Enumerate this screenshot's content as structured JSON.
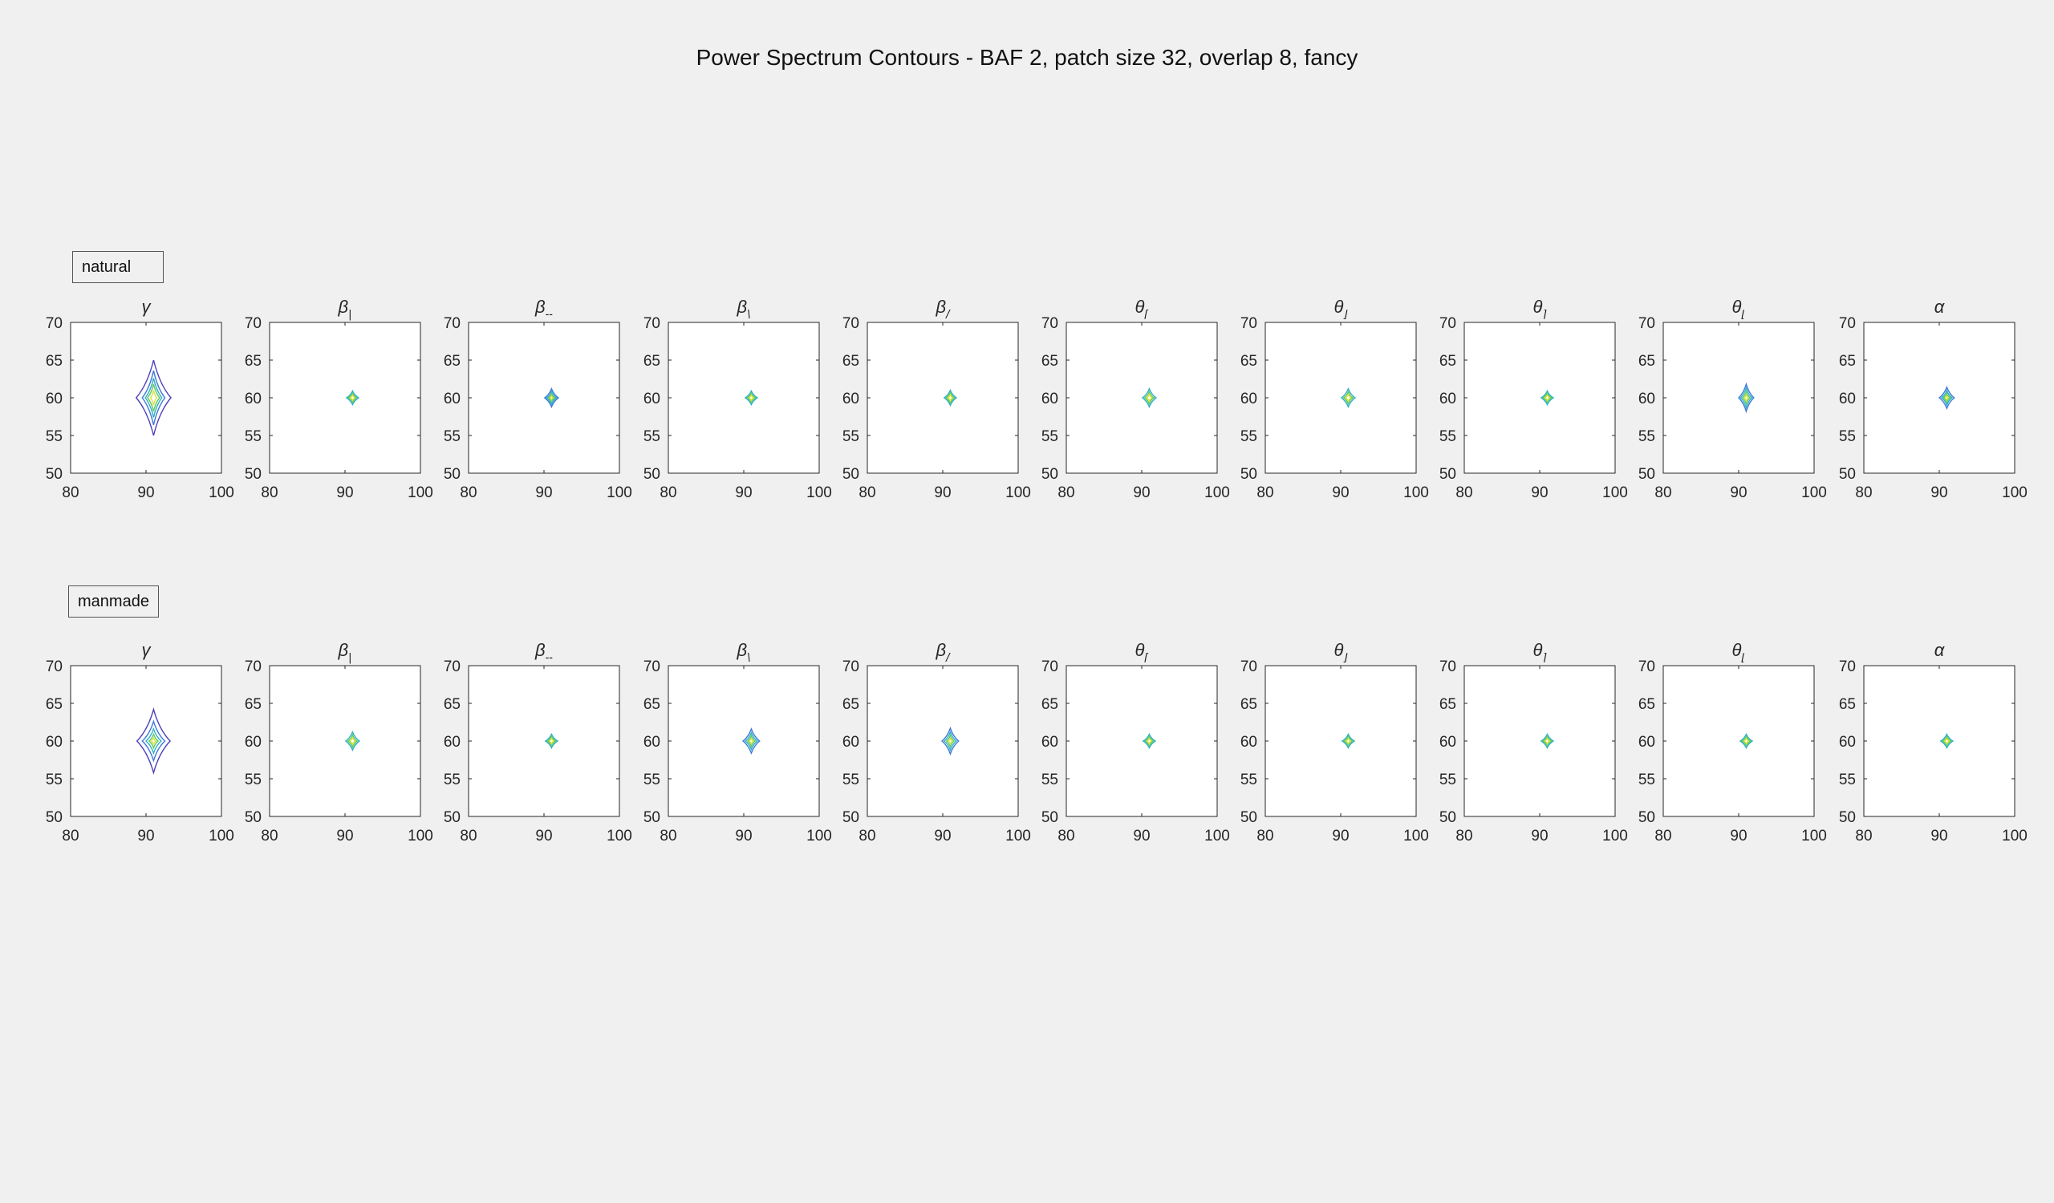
{
  "figure": {
    "title": "Power Spectrum Contours - BAF 2, patch size 32, overlap 8, fancy"
  },
  "colors": {
    "background": "#f0f0f0",
    "axes_face": "#ffffff",
    "axes_edge": "#262626",
    "contour_levels": [
      "#4a3fb8",
      "#3c78d8",
      "#2fb0c6",
      "#5ec962",
      "#d9e33b"
    ]
  },
  "rows": [
    {
      "label": "natural",
      "panels": [
        {
          "symbol": "γ",
          "subscript": "",
          "contours": [
            {
              "rx": 2.3,
              "ry": 5.0
            },
            {
              "rx": 1.5,
              "ry": 3.6
            },
            {
              "rx": 1.1,
              "ry": 2.6
            },
            {
              "rx": 0.8,
              "ry": 1.8
            },
            {
              "rx": 0.4,
              "ry": 1.0
            }
          ]
        },
        {
          "symbol": "β",
          "subscript": "|",
          "contours": [
            {
              "rx": 0.8,
              "ry": 0.9
            },
            {
              "rx": 0.55,
              "ry": 0.6
            },
            {
              "rx": 0.3,
              "ry": 0.35
            }
          ]
        },
        {
          "symbol": "β",
          "subscript": "--",
          "contours": [
            {
              "rx": 0.9,
              "ry": 1.2
            },
            {
              "rx": 0.65,
              "ry": 0.85
            },
            {
              "rx": 0.4,
              "ry": 0.5
            },
            {
              "rx": 0.2,
              "ry": 0.25
            }
          ]
        },
        {
          "symbol": "β",
          "subscript": "\\",
          "contours": [
            {
              "rx": 0.8,
              "ry": 0.9
            },
            {
              "rx": 0.55,
              "ry": 0.6
            },
            {
              "rx": 0.3,
              "ry": 0.35
            }
          ]
        },
        {
          "symbol": "β",
          "subscript": "/",
          "contours": [
            {
              "rx": 0.8,
              "ry": 1.0
            },
            {
              "rx": 0.55,
              "ry": 0.7
            },
            {
              "rx": 0.3,
              "ry": 0.4
            }
          ]
        },
        {
          "symbol": "θ",
          "subscript": "⌈",
          "contours": [
            {
              "rx": 0.9,
              "ry": 1.2
            },
            {
              "rx": 0.6,
              "ry": 0.8
            },
            {
              "rx": 0.35,
              "ry": 0.45
            }
          ]
        },
        {
          "symbol": "θ",
          "subscript": "⌋",
          "contours": [
            {
              "rx": 0.9,
              "ry": 1.2
            },
            {
              "rx": 0.6,
              "ry": 0.8
            },
            {
              "rx": 0.35,
              "ry": 0.45
            }
          ]
        },
        {
          "symbol": "θ",
          "subscript": "⌉",
          "contours": [
            {
              "rx": 0.8,
              "ry": 0.9
            },
            {
              "rx": 0.55,
              "ry": 0.6
            },
            {
              "rx": 0.3,
              "ry": 0.35
            }
          ]
        },
        {
          "symbol": "θ",
          "subscript": "⌊",
          "contours": [
            {
              "rx": 1.0,
              "ry": 1.8
            },
            {
              "rx": 0.75,
              "ry": 1.3
            },
            {
              "rx": 0.5,
              "ry": 0.8
            },
            {
              "rx": 0.25,
              "ry": 0.4
            }
          ]
        },
        {
          "symbol": "α",
          "subscript": "",
          "contours": [
            {
              "rx": 1.0,
              "ry": 1.4
            },
            {
              "rx": 0.7,
              "ry": 0.95
            },
            {
              "rx": 0.45,
              "ry": 0.6
            },
            {
              "rx": 0.2,
              "ry": 0.3
            }
          ]
        }
      ]
    },
    {
      "label": "manmade",
      "panels": [
        {
          "symbol": "γ",
          "subscript": "",
          "contours": [
            {
              "rx": 2.2,
              "ry": 4.2
            },
            {
              "rx": 1.5,
              "ry": 2.6
            },
            {
              "rx": 1.0,
              "ry": 1.6
            },
            {
              "rx": 0.6,
              "ry": 0.9
            },
            {
              "rx": 0.3,
              "ry": 0.4
            }
          ]
        },
        {
          "symbol": "β",
          "subscript": "|",
          "contours": [
            {
              "rx": 0.9,
              "ry": 1.2
            },
            {
              "rx": 0.6,
              "ry": 0.8
            },
            {
              "rx": 0.35,
              "ry": 0.45
            }
          ]
        },
        {
          "symbol": "β",
          "subscript": "--",
          "contours": [
            {
              "rx": 0.8,
              "ry": 0.9
            },
            {
              "rx": 0.55,
              "ry": 0.6
            },
            {
              "rx": 0.3,
              "ry": 0.35
            }
          ]
        },
        {
          "symbol": "β",
          "subscript": "\\",
          "contours": [
            {
              "rx": 1.1,
              "ry": 1.6
            },
            {
              "rx": 0.8,
              "ry": 1.1
            },
            {
              "rx": 0.5,
              "ry": 0.7
            },
            {
              "rx": 0.25,
              "ry": 0.35
            }
          ]
        },
        {
          "symbol": "β",
          "subscript": "/",
          "contours": [
            {
              "rx": 1.1,
              "ry": 1.7
            },
            {
              "rx": 0.8,
              "ry": 1.2
            },
            {
              "rx": 0.5,
              "ry": 0.75
            },
            {
              "rx": 0.25,
              "ry": 0.35
            }
          ]
        },
        {
          "symbol": "θ",
          "subscript": "⌈",
          "contours": [
            {
              "rx": 0.8,
              "ry": 0.9
            },
            {
              "rx": 0.55,
              "ry": 0.6
            },
            {
              "rx": 0.3,
              "ry": 0.35
            }
          ]
        },
        {
          "symbol": "θ",
          "subscript": "⌋",
          "contours": [
            {
              "rx": 0.8,
              "ry": 0.9
            },
            {
              "rx": 0.55,
              "ry": 0.6
            },
            {
              "rx": 0.3,
              "ry": 0.35
            }
          ]
        },
        {
          "symbol": "θ",
          "subscript": "⌉",
          "contours": [
            {
              "rx": 0.8,
              "ry": 0.9
            },
            {
              "rx": 0.55,
              "ry": 0.6
            },
            {
              "rx": 0.3,
              "ry": 0.35
            }
          ]
        },
        {
          "symbol": "θ",
          "subscript": "⌊",
          "contours": [
            {
              "rx": 0.8,
              "ry": 0.9
            },
            {
              "rx": 0.55,
              "ry": 0.6
            },
            {
              "rx": 0.3,
              "ry": 0.35
            }
          ]
        },
        {
          "symbol": "α",
          "subscript": "",
          "contours": [
            {
              "rx": 0.8,
              "ry": 0.9
            },
            {
              "rx": 0.55,
              "ry": 0.6
            },
            {
              "rx": 0.3,
              "ry": 0.35
            }
          ]
        }
      ]
    }
  ],
  "chart_data": {
    "type": "contour",
    "title": "Power Spectrum Contours - BAF 2, patch size 32, overlap 8, fancy",
    "xlim": [
      80,
      100
    ],
    "ylim": [
      50,
      70
    ],
    "xticks": [
      80,
      90,
      100
    ],
    "yticks": [
      50,
      55,
      60,
      65,
      70
    ],
    "center": [
      91,
      60
    ],
    "grid": false
  }
}
